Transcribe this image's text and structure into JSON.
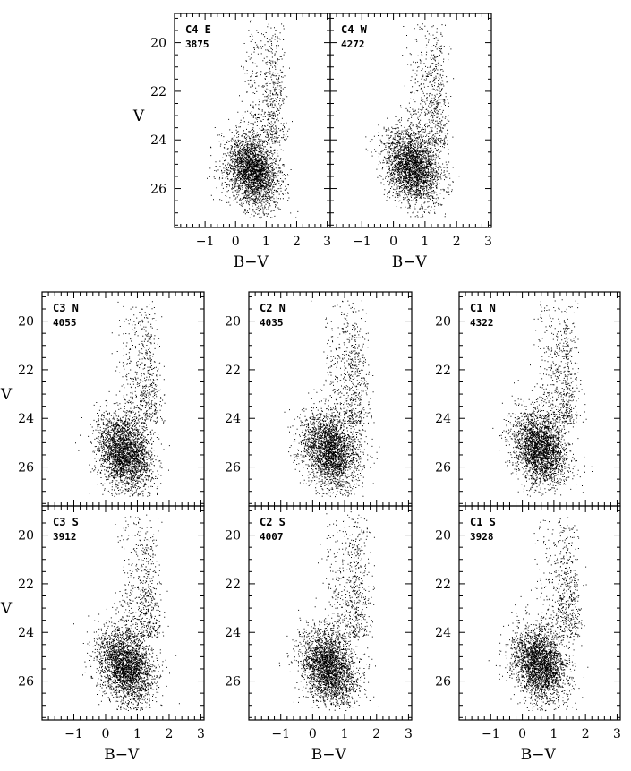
{
  "chart_data": [
    {
      "type": "scatter",
      "panel": "C4 E",
      "count": "3875",
      "xlabel": "B−V",
      "ylabel": "V",
      "xlim": [
        -2,
        3.1
      ],
      "ylim": [
        27.6,
        18.8
      ],
      "x_ticks": [
        "−1",
        "0",
        "1",
        "2",
        "3"
      ],
      "y_ticks": [
        "20",
        "22",
        "24",
        "26"
      ],
      "inverted_y": true,
      "density": {
        "center_bv": 0.55,
        "center_v": 25.3,
        "gb_mean_bv": 1.2,
        "gb_top_v": 19.0
      }
    },
    {
      "type": "scatter",
      "panel": "C4 W",
      "count": "4272",
      "xlabel": "B−V",
      "ylabel": "",
      "xlim": [
        -2,
        3.1
      ],
      "ylim": [
        27.6,
        18.8
      ],
      "x_ticks": [
        "−1",
        "0",
        "1",
        "2",
        "3"
      ],
      "y_ticks": [],
      "inverted_y": true,
      "density": {
        "center_bv": 0.6,
        "center_v": 25.1,
        "gb_mean_bv": 1.3,
        "gb_top_v": 19.0
      }
    },
    {
      "type": "scatter",
      "panel": "C3 N",
      "count": "4055",
      "xlabel": "",
      "ylabel": "V",
      "xlim": [
        -2,
        3.1
      ],
      "ylim": [
        27.6,
        18.8
      ],
      "x_ticks": [],
      "y_ticks": [
        "20",
        "22",
        "24",
        "26"
      ],
      "inverted_y": true,
      "density": {
        "center_bv": 0.6,
        "center_v": 25.4,
        "gb_mean_bv": 1.3,
        "gb_top_v": 19.0
      }
    },
    {
      "type": "scatter",
      "panel": "C2 N",
      "count": "4035",
      "xlabel": "",
      "ylabel": "",
      "xlim": [
        -2,
        3.1
      ],
      "ylim": [
        27.6,
        18.8
      ],
      "x_ticks": [],
      "y_ticks": [
        "20",
        "22",
        "24",
        "26"
      ],
      "inverted_y": true,
      "density": {
        "center_bv": 0.55,
        "center_v": 25.3,
        "gb_mean_bv": 1.3,
        "gb_top_v": 19.0
      }
    },
    {
      "type": "scatter",
      "panel": "C1 N",
      "count": "4322",
      "xlabel": "",
      "ylabel": "",
      "xlim": [
        -2,
        3.1
      ],
      "ylim": [
        27.6,
        18.8
      ],
      "x_ticks": [],
      "y_ticks": [
        "20",
        "22",
        "24",
        "26"
      ],
      "inverted_y": true,
      "density": {
        "center_bv": 0.55,
        "center_v": 25.2,
        "gb_mean_bv": 1.35,
        "gb_top_v": 19.0
      }
    },
    {
      "type": "scatter",
      "panel": "C3 S",
      "count": "3912",
      "xlabel": "B−V",
      "ylabel": "V",
      "xlim": [
        -2,
        3.1
      ],
      "ylim": [
        27.6,
        18.8
      ],
      "x_ticks": [
        "−1",
        "0",
        "1",
        "2",
        "3"
      ],
      "y_ticks": [
        "20",
        "22",
        "24",
        "26"
      ],
      "inverted_y": true,
      "density": {
        "center_bv": 0.65,
        "center_v": 25.4,
        "gb_mean_bv": 1.3,
        "gb_top_v": 19.0
      }
    },
    {
      "type": "scatter",
      "panel": "C2 S",
      "count": "4007",
      "xlabel": "B−V",
      "ylabel": "",
      "xlim": [
        -2,
        3.1
      ],
      "ylim": [
        27.6,
        18.8
      ],
      "x_ticks": [
        "−1",
        "0",
        "1",
        "2",
        "3"
      ],
      "y_ticks": [
        "20",
        "22",
        "24",
        "26"
      ],
      "inverted_y": true,
      "density": {
        "center_bv": 0.5,
        "center_v": 25.4,
        "gb_mean_bv": 1.35,
        "gb_top_v": 19.0
      }
    },
    {
      "type": "scatter",
      "panel": "C1 S",
      "count": "3928",
      "xlabel": "B−V",
      "ylabel": "",
      "xlim": [
        -2,
        3.1
      ],
      "ylim": [
        27.6,
        18.8
      ],
      "x_ticks": [
        "−1",
        "0",
        "1",
        "2",
        "3"
      ],
      "y_ticks": [
        "20",
        "22",
        "24",
        "26"
      ],
      "inverted_y": true,
      "density": {
        "center_bv": 0.55,
        "center_v": 25.3,
        "gb_mean_bv": 1.4,
        "gb_top_v": 19.0
      }
    }
  ]
}
